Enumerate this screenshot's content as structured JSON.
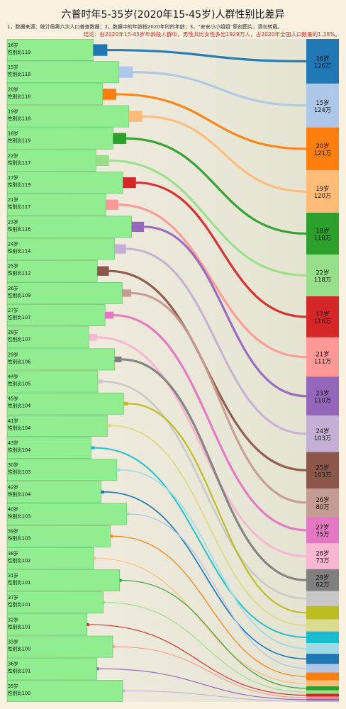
{
  "title": "六普时年5-35岁(2020年15-45岁)人群性别比差异",
  "notes": "1，数据来源：统计局第六次人口普查数据；2，数据中的年龄指2020年时的年龄；3，“安安小小姐姐”原创图片，请勿转载。",
  "conclusion": "结论：在2020年15-45岁年龄段人群中，男性共比女性多出1929万人，占2020年全国人口数量的1.38%。",
  "colors": {
    "background": "#fbf1e1",
    "bar": "#90ee90",
    "bar_border": "#5fbf5f",
    "panel": "#e8e8d8"
  },
  "chart_data": {
    "type": "sankey",
    "title": "六普时年5-35岁(2020年15-45岁)人群性别比差异",
    "left_nodes": [
      {
        "age": "16岁",
        "ratio_label": "性别比119",
        "ratio": 119,
        "color": "#1f77b4"
      },
      {
        "age": "15岁",
        "ratio_label": "性别比118",
        "ratio": 118,
        "color": "#aec7e8"
      },
      {
        "age": "20岁",
        "ratio_label": "性别比118",
        "ratio": 118,
        "color": "#ff7f0e"
      },
      {
        "age": "19岁",
        "ratio_label": "性别比118",
        "ratio": 118,
        "color": "#ffbb78"
      },
      {
        "age": "18岁",
        "ratio_label": "性别比119",
        "ratio": 119,
        "color": "#2ca02c"
      },
      {
        "age": "22岁",
        "ratio_label": "性别比117",
        "ratio": 117,
        "color": "#98df8a"
      },
      {
        "age": "17岁",
        "ratio_label": "性别比119",
        "ratio": 119,
        "color": "#d62728"
      },
      {
        "age": "21岁",
        "ratio_label": "性别比117",
        "ratio": 117,
        "color": "#ff9896"
      },
      {
        "age": "23岁",
        "ratio_label": "性别比116",
        "ratio": 116,
        "color": "#9467bd"
      },
      {
        "age": "24岁",
        "ratio_label": "性别比114",
        "ratio": 114,
        "color": "#c5b0d5"
      },
      {
        "age": "25岁",
        "ratio_label": "性别比112",
        "ratio": 112,
        "color": "#8c564b"
      },
      {
        "age": "26岁",
        "ratio_label": "性别比109",
        "ratio": 109,
        "color": "#c49c94"
      },
      {
        "age": "27岁",
        "ratio_label": "性别比107",
        "ratio": 107,
        "color": "#e377c2"
      },
      {
        "age": "28岁",
        "ratio_label": "性别比107",
        "ratio": 107,
        "color": "#f7b6d2"
      },
      {
        "age": "29岁",
        "ratio_label": "性别比106",
        "ratio": 106,
        "color": "#7f7f7f"
      },
      {
        "age": "44岁",
        "ratio_label": "性别比105",
        "ratio": 105,
        "color": "#c7c7c7"
      },
      {
        "age": "45岁",
        "ratio_label": "性别比104",
        "ratio": 104,
        "color": "#bcbd22"
      },
      {
        "age": "41岁",
        "ratio_label": "性别比104",
        "ratio": 104,
        "color": "#dbdb8d"
      },
      {
        "age": "43岁",
        "ratio_label": "性别比104",
        "ratio": 104,
        "color": "#17becf"
      },
      {
        "age": "30岁",
        "ratio_label": "性别比103",
        "ratio": 103,
        "color": "#9edae5"
      },
      {
        "age": "42岁",
        "ratio_label": "性别比104",
        "ratio": 104,
        "color": "#1f77b4"
      },
      {
        "age": "40岁",
        "ratio_label": "性别比103",
        "ratio": 103,
        "color": "#aec7e8"
      },
      {
        "age": "39岁",
        "ratio_label": "性别比103",
        "ratio": 103,
        "color": "#ff7f0e"
      },
      {
        "age": "38岁",
        "ratio_label": "性别比102",
        "ratio": 102,
        "color": "#ffbb78"
      },
      {
        "age": "31岁",
        "ratio_label": "性别比101",
        "ratio": 101,
        "color": "#2ca02c"
      },
      {
        "age": "37岁",
        "ratio_label": "性别比101",
        "ratio": 101,
        "color": "#98df8a"
      },
      {
        "age": "32岁",
        "ratio_label": "性别比101",
        "ratio": 101,
        "color": "#d62728"
      },
      {
        "age": "33岁",
        "ratio_label": "性别比100",
        "ratio": 100,
        "color": "#ff9896"
      },
      {
        "age": "36岁",
        "ratio_label": "性别比101",
        "ratio": 101,
        "color": "#9467bd"
      },
      {
        "age": "35岁",
        "ratio_label": "性别比100",
        "ratio": 100,
        "color": "#c5b0d5"
      }
    ],
    "right_nodes": [
      {
        "age": "16岁",
        "value_label": "126万",
        "value": 126,
        "color": "#1f77b4"
      },
      {
        "age": "15岁",
        "value_label": "124万",
        "value": 124,
        "color": "#aec7e8"
      },
      {
        "age": "20岁",
        "value_label": "121万",
        "value": 121,
        "color": "#ff7f0e"
      },
      {
        "age": "19岁",
        "value_label": "120万",
        "value": 120,
        "color": "#ffbb78"
      },
      {
        "age": "18岁",
        "value_label": "118万",
        "value": 118,
        "color": "#2ca02c"
      },
      {
        "age": "22岁",
        "value_label": "118万",
        "value": 118,
        "color": "#98df8a"
      },
      {
        "age": "17岁",
        "value_label": "116万",
        "value": 116,
        "color": "#d62728"
      },
      {
        "age": "21岁",
        "value_label": "111万",
        "value": 111,
        "color": "#ff9896"
      },
      {
        "age": "23岁",
        "value_label": "110万",
        "value": 110,
        "color": "#9467bd"
      },
      {
        "age": "24岁",
        "value_label": "103万",
        "value": 103,
        "color": "#c5b0d5"
      },
      {
        "age": "25岁",
        "value_label": "103万",
        "value": 103,
        "color": "#8c564b"
      },
      {
        "age": "26岁",
        "value_label": "80万",
        "value": 80,
        "color": "#c49c94"
      },
      {
        "age": "27岁",
        "value_label": "75万",
        "value": 75,
        "color": "#e377c2"
      },
      {
        "age": "28岁",
        "value_label": "73万",
        "value": 73,
        "color": "#f7b6d2"
      },
      {
        "age": "29岁",
        "value_label": "62万",
        "value": 62,
        "color": "#7f7f7f"
      },
      {
        "age": "",
        "value_label": "",
        "value": 42,
        "color": "#c7c7c7"
      },
      {
        "age": "",
        "value_label": "",
        "value": 38,
        "color": "#bcbd22"
      },
      {
        "age": "",
        "value_label": "",
        "value": 34,
        "color": "#dbdb8d"
      },
      {
        "age": "",
        "value_label": "",
        "value": 33,
        "color": "#17becf"
      },
      {
        "age": "",
        "value_label": "",
        "value": 30,
        "color": "#9edae5"
      },
      {
        "age": "",
        "value_label": "",
        "value": 29,
        "color": "#1f77b4"
      },
      {
        "age": "",
        "value_label": "",
        "value": 24,
        "color": "#aec7e8"
      },
      {
        "age": "",
        "value_label": "",
        "value": 22,
        "color": "#ff7f0e"
      },
      {
        "age": "",
        "value_label": "",
        "value": 17,
        "color": "#ffbb78"
      },
      {
        "age": "",
        "value_label": "",
        "value": 11,
        "color": "#2ca02c"
      },
      {
        "age": "",
        "value_label": "",
        "value": 10,
        "color": "#98df8a"
      },
      {
        "age": "",
        "value_label": "",
        "value": 8,
        "color": "#d62728"
      },
      {
        "age": "",
        "value_label": "",
        "value": 6,
        "color": "#ff9896"
      },
      {
        "age": "",
        "value_label": "",
        "value": 5,
        "color": "#9467bd"
      },
      {
        "age": "",
        "value_label": "",
        "value": 4,
        "color": "#c5b0d5"
      }
    ]
  }
}
